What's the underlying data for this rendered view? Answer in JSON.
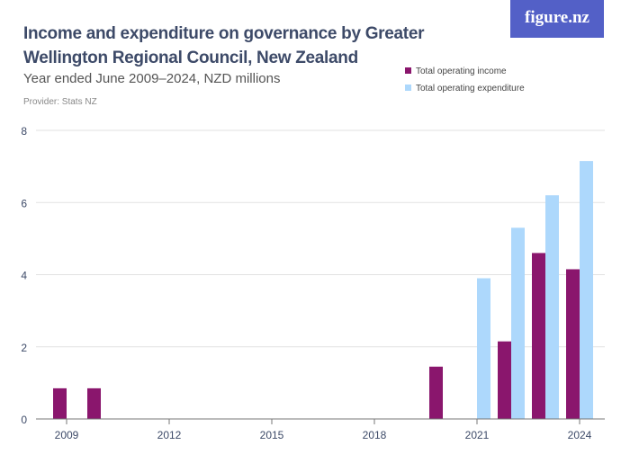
{
  "title": "Income and expenditure on governance by Greater Wellington Regional Council, New Zealand",
  "subtitle": "Year ended June 2009–2024, NZD millions",
  "provider": "Provider: Stats NZ",
  "logo": "figure.nz",
  "chart_data": {
    "type": "bar",
    "categories": [
      2009,
      2010,
      2011,
      2012,
      2013,
      2014,
      2015,
      2016,
      2017,
      2018,
      2019,
      2020,
      2021,
      2022,
      2023,
      2024
    ],
    "xticks": [
      "2009",
      "2012",
      "2015",
      "2018",
      "2021",
      "2024"
    ],
    "yticks": [
      "0",
      "2",
      "4",
      "6",
      "8"
    ],
    "ylim": [
      0,
      8
    ],
    "grid": true,
    "legend_placement": "top-right",
    "series": [
      {
        "name": "Total operating income",
        "color": "#8a166d",
        "values": [
          0.85,
          0.85,
          0,
          0,
          0,
          0,
          0,
          0,
          0,
          0,
          0,
          1.45,
          0,
          2.15,
          4.6,
          4.15
        ]
      },
      {
        "name": "Total operating expenditure",
        "color": "#add8fc",
        "values": [
          0,
          0,
          0,
          0,
          0,
          0,
          0,
          0,
          0,
          0,
          0,
          0,
          3.9,
          5.3,
          6.2,
          7.15
        ]
      }
    ]
  }
}
